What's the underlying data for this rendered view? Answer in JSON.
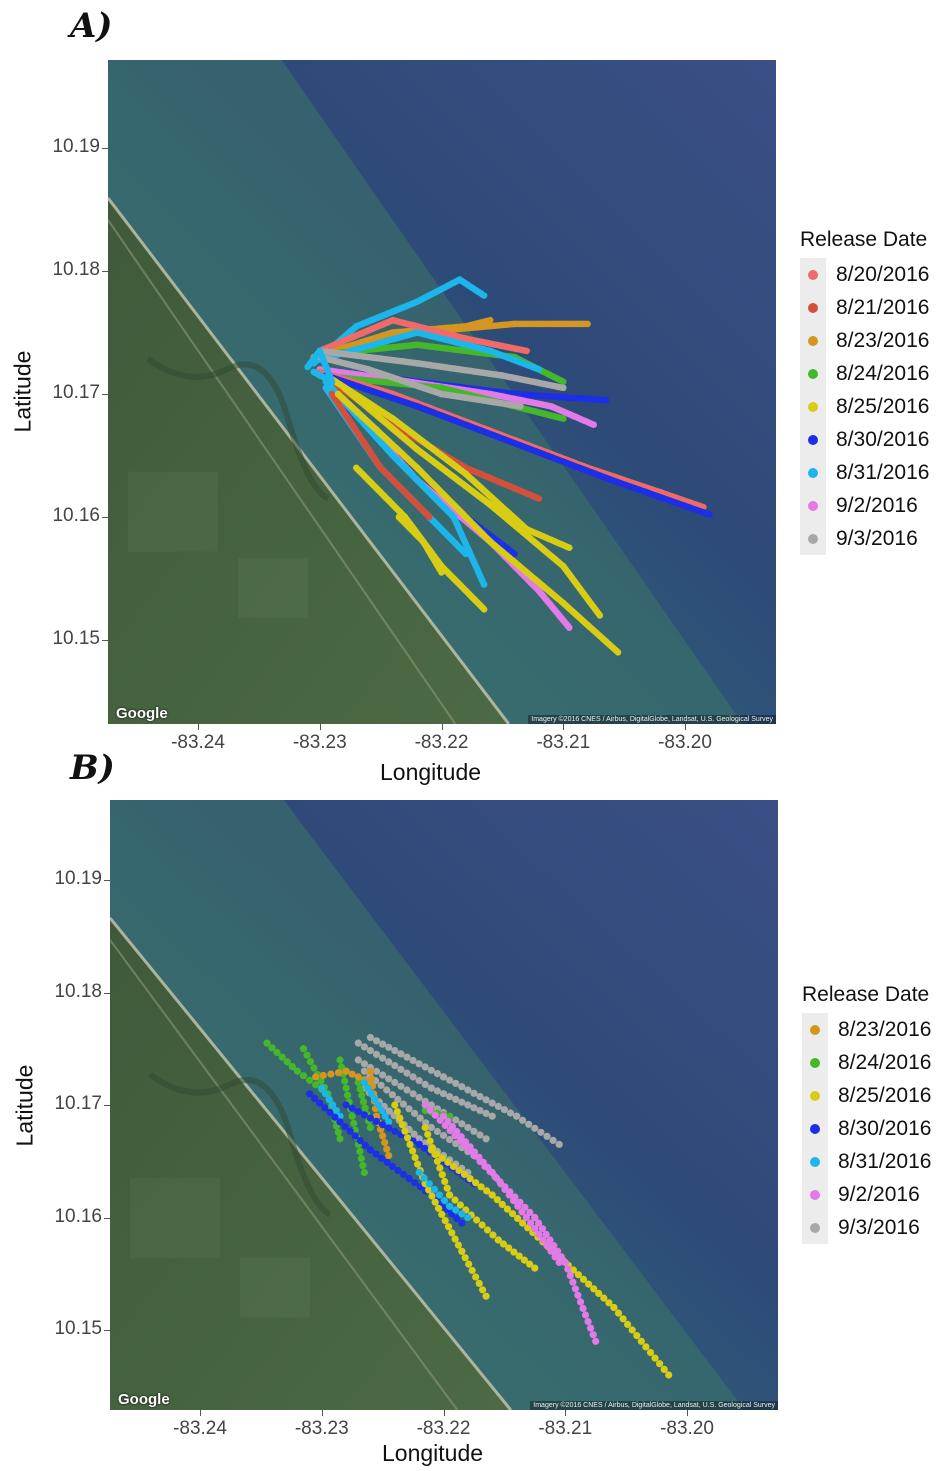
{
  "colors": {
    "8/20/2016": "#f06a6a",
    "8/21/2016": "#d2503c",
    "8/23/2016": "#d4961e",
    "8/24/2016": "#44b82a",
    "8/25/2016": "#d8cc14",
    "8/30/2016": "#1c2ee6",
    "8/31/2016": "#1cb6ea",
    "9/2/2016": "#e27ae8",
    "9/3/2016": "#a8a8a8"
  },
  "panels": [
    {
      "letter": "A)",
      "x_ticks": [
        "-83.24",
        "-83.23",
        "-83.22",
        "-83.21",
        "-83.20"
      ],
      "y_ticks": [
        "10.19",
        "10.18",
        "10.17",
        "10.16",
        "10.15"
      ],
      "xlabel": "Longitude",
      "ylabel": "Latitude",
      "google_label": "Google",
      "imagery_credit": "Imagery ©2016 CNES / Airbus, DigitalGlobe, Landsat, U.S. Geological Survey",
      "legend_title": "Release Date",
      "legend": [
        "8/20/2016",
        "8/21/2016",
        "8/23/2016",
        "8/24/2016",
        "8/25/2016",
        "8/30/2016",
        "8/31/2016",
        "9/2/2016",
        "9/3/2016"
      ],
      "tracks": [
        {
          "date": "8/31/2016",
          "pts": [
            [
              -83.2305,
              10.1725
            ],
            [
              -83.227,
              10.1755
            ],
            [
              -83.222,
              10.1775
            ],
            [
              -83.2185,
              10.1793
            ],
            [
              -83.2165,
              10.178
            ]
          ]
        },
        {
          "date": "8/23/2016",
          "pts": [
            [
              -83.2305,
              10.173
            ],
            [
              -83.224,
              10.175
            ],
            [
              -83.218,
              10.1755
            ],
            [
              -83.216,
              10.176
            ]
          ]
        },
        {
          "date": "8/23/2016",
          "pts": [
            [
              -83.224,
              10.1748
            ],
            [
              -83.214,
              10.1757
            ],
            [
              -83.208,
              10.1757
            ]
          ]
        },
        {
          "date": "8/20/2016",
          "pts": [
            [
              -83.23,
              10.1735
            ],
            [
              -83.224,
              10.176
            ],
            [
              -83.218,
              10.1745
            ],
            [
              -83.213,
              10.1735
            ]
          ]
        },
        {
          "date": "8/24/2016",
          "pts": [
            [
              -83.23,
              10.1732
            ],
            [
              -83.222,
              10.174
            ],
            [
              -83.214,
              10.173
            ],
            [
              -83.21,
              10.171
            ]
          ]
        },
        {
          "date": "8/31/2016",
          "pts": [
            [
              -83.23,
              10.1728
            ],
            [
              -83.222,
              10.175
            ],
            [
              -83.216,
              10.1735
            ],
            [
              -83.212,
              10.172
            ]
          ]
        },
        {
          "date": "9/3/2016",
          "pts": [
            [
              -83.23,
              10.1735
            ],
            [
              -83.222,
              10.1725
            ],
            [
              -83.215,
              10.1715
            ],
            [
              -83.21,
              10.1705
            ]
          ]
        },
        {
          "date": "8/30/2016",
          "pts": [
            [
              -83.23,
              10.172
            ],
            [
              -83.222,
              10.171
            ],
            [
              -83.214,
              10.17
            ],
            [
              -83.2065,
              10.1695
            ]
          ]
        },
        {
          "date": "9/2/2016",
          "pts": [
            [
              -83.23,
              10.172
            ],
            [
              -83.224,
              10.1712
            ],
            [
              -83.216,
              10.17
            ],
            [
              -83.211,
              10.169
            ],
            [
              -83.2075,
              10.1675
            ]
          ]
        },
        {
          "date": "8/24/2016",
          "pts": [
            [
              -83.23,
              10.1715
            ],
            [
              -83.22,
              10.1705
            ],
            [
              -83.214,
              10.169
            ],
            [
              -83.21,
              10.168
            ]
          ]
        },
        {
          "date": "8/20/2016",
          "pts": [
            [
              -83.23,
              10.1718
            ],
            [
              -83.224,
              10.17
            ],
            [
              -83.216,
              10.167
            ],
            [
              -83.208,
              10.164
            ],
            [
              -83.202,
              10.162
            ],
            [
              -83.1985,
              10.1608
            ]
          ]
        },
        {
          "date": "8/30/2016",
          "pts": [
            [
              -83.2295,
              10.1715
            ],
            [
              -83.222,
              10.169
            ],
            [
              -83.214,
              10.166
            ],
            [
              -83.206,
              10.163
            ],
            [
              -83.198,
              10.1602
            ]
          ]
        },
        {
          "date": "8/21/2016",
          "pts": [
            [
              -83.229,
              10.171
            ],
            [
              -83.224,
              10.1675
            ],
            [
              -83.218,
              10.164
            ],
            [
              -83.212,
              10.1615
            ]
          ]
        },
        {
          "date": "8/25/2016",
          "pts": [
            [
              -83.229,
              10.1712
            ],
            [
              -83.224,
              10.168
            ],
            [
              -83.218,
              10.1635
            ],
            [
              -83.213,
              10.159
            ],
            [
              -83.2095,
              10.1575
            ]
          ]
        },
        {
          "date": "8/25/2016",
          "pts": [
            [
              -83.228,
              10.1705
            ],
            [
              -83.222,
              10.1655
            ],
            [
              -83.216,
              10.161
            ],
            [
              -83.21,
              10.156
            ],
            [
              -83.207,
              10.152
            ]
          ]
        },
        {
          "date": "8/30/2016",
          "pts": [
            [
              -83.229,
              10.17
            ],
            [
              -83.222,
              10.164
            ],
            [
              -83.218,
              10.16
            ],
            [
              -83.214,
              10.157
            ]
          ]
        },
        {
          "date": "9/2/2016",
          "pts": [
            [
              -83.2285,
              10.17
            ],
            [
              -83.222,
              10.163
            ],
            [
              -83.216,
              10.158
            ],
            [
              -83.212,
              10.154
            ],
            [
              -83.2095,
              10.151
            ]
          ]
        },
        {
          "date": "8/31/2016",
          "pts": [
            [
              -83.2295,
              10.171
            ],
            [
              -83.224,
              10.165
            ],
            [
              -83.219,
              10.16
            ],
            [
              -83.2165,
              10.1545
            ]
          ]
        },
        {
          "date": "8/31/2016",
          "pts": [
            [
              -83.2295,
              10.1705
            ],
            [
              -83.225,
              10.164
            ],
            [
              -83.221,
              10.16
            ],
            [
              -83.218,
              10.157
            ]
          ]
        },
        {
          "date": "8/21/2016",
          "pts": [
            [
              -83.229,
              10.17
            ],
            [
              -83.225,
              10.164
            ],
            [
              -83.221,
              10.16
            ]
          ]
        },
        {
          "date": "8/25/2016",
          "pts": [
            [
              -83.227,
              10.164
            ],
            [
              -83.223,
              10.16
            ],
            [
              -83.22,
              10.156
            ],
            [
              -83.2165,
              10.1525
            ]
          ]
        },
        {
          "date": "8/25/2016",
          "pts": [
            [
              -83.2235,
              10.16
            ],
            [
              -83.2215,
              10.158
            ],
            [
              -83.22,
              10.1555
            ]
          ]
        },
        {
          "date": "8/25/2016",
          "pts": [
            [
              -83.2285,
              10.17
            ],
            [
              -83.222,
              10.164
            ],
            [
              -83.216,
              10.158
            ],
            [
              -83.21,
              10.153
            ],
            [
              -83.2055,
              10.149
            ]
          ]
        },
        {
          "date": "9/3/2016",
          "pts": [
            [
              -83.23,
              10.173
            ],
            [
              -83.226,
              10.172
            ],
            [
              -83.22,
              10.17
            ],
            [
              -83.2135,
              10.169
            ]
          ]
        },
        {
          "date": "8/31/2016",
          "pts": [
            [
              -83.231,
              10.1722
            ],
            [
              -83.23,
              10.1735
            ],
            [
              -83.229,
              10.171
            ],
            [
              -83.2305,
              10.1718
            ]
          ]
        }
      ]
    },
    {
      "letter": "B)",
      "x_ticks": [
        "-83.24",
        "-83.23",
        "-83.22",
        "-83.21",
        "-83.20"
      ],
      "y_ticks": [
        "10.19",
        "10.18",
        "10.17",
        "10.16",
        "10.15"
      ],
      "xlabel": "Longitude",
      "ylabel": "Latitude",
      "google_label": "Google",
      "imagery_credit": "Imagery ©2016 CNES / Airbus, DigitalGlobe, Landsat, U.S. Geological Survey",
      "legend_title": "Release Date",
      "legend": [
        "8/23/2016",
        "8/24/2016",
        "8/25/2016",
        "8/30/2016",
        "8/31/2016",
        "9/2/2016",
        "9/3/2016"
      ],
      "tracks": [
        {
          "date": "9/3/2016",
          "pts": [
            [
              -83.226,
              10.176
            ],
            [
              -83.22,
              10.1725
            ],
            [
              -83.214,
              10.169
            ],
            [
              -83.2105,
              10.1665
            ]
          ]
        },
        {
          "date": "9/3/2016",
          "pts": [
            [
              -83.227,
              10.1755
            ],
            [
              -83.221,
              10.1715
            ],
            [
              -83.216,
              10.169
            ]
          ]
        },
        {
          "date": "9/3/2016",
          "pts": [
            [
              -83.227,
              10.174
            ],
            [
              -83.221,
              10.17
            ],
            [
              -83.2165,
              10.167
            ]
          ]
        },
        {
          "date": "9/3/2016",
          "pts": [
            [
              -83.2265,
              10.173
            ],
            [
              -83.221,
              10.168
            ],
            [
              -83.2175,
              10.1655
            ]
          ]
        },
        {
          "date": "9/3/2016",
          "pts": [
            [
              -83.2265,
              10.1715
            ],
            [
              -83.222,
              10.167
            ],
            [
              -83.218,
              10.164
            ]
          ]
        },
        {
          "date": "8/24/2016",
          "pts": [
            [
              -83.2345,
              10.1755
            ],
            [
              -83.232,
              10.173
            ],
            [
              -83.2295,
              10.171
            ]
          ]
        },
        {
          "date": "8/24/2016",
          "pts": [
            [
              -83.2315,
              10.175
            ],
            [
              -83.2295,
              10.171
            ],
            [
              -83.2285,
              10.167
            ]
          ]
        },
        {
          "date": "8/24/2016",
          "pts": [
            [
              -83.2285,
              10.174
            ],
            [
              -83.2275,
              10.169
            ],
            [
              -83.2265,
              10.164
            ]
          ]
        },
        {
          "date": "8/24/2016",
          "pts": [
            [
              -83.227,
              10.172
            ],
            [
              -83.226,
              10.168
            ]
          ]
        },
        {
          "date": "8/24/2016",
          "pts": [
            [
              -83.2215,
              10.1695
            ],
            [
              -83.2195,
              10.169
            ]
          ]
        },
        {
          "date": "8/23/2016",
          "pts": [
            [
              -83.2305,
              10.1725
            ],
            [
              -83.228,
              10.173
            ],
            [
              -83.226,
              10.172
            ]
          ]
        },
        {
          "date": "8/23/2016",
          "pts": [
            [
              -83.226,
              10.173
            ],
            [
              -83.2255,
              10.169
            ],
            [
              -83.2245,
              10.1655
            ]
          ]
        },
        {
          "date": "8/31/2016",
          "pts": [
            [
              -83.23,
              10.1715
            ],
            [
              -83.2285,
              10.169
            ]
          ]
        },
        {
          "date": "8/31/2016",
          "pts": [
            [
              -83.2265,
              10.172
            ],
            [
              -83.2245,
              10.1685
            ]
          ]
        },
        {
          "date": "8/30/2016",
          "pts": [
            [
              -83.231,
              10.171
            ],
            [
              -83.226,
              10.166
            ],
            [
              -83.221,
              10.162
            ],
            [
              -83.2185,
              10.1595
            ]
          ]
        },
        {
          "date": "8/30/2016",
          "pts": [
            [
              -83.228,
              10.17
            ],
            [
              -83.222,
              10.1665
            ],
            [
              -83.2175,
              10.163
            ]
          ]
        },
        {
          "date": "8/25/2016",
          "pts": [
            [
              -83.224,
              10.17
            ],
            [
              -83.2215,
              10.163
            ],
            [
              -83.2185,
              10.157
            ],
            [
              -83.2165,
              10.153
            ]
          ]
        },
        {
          "date": "8/25/2016",
          "pts": [
            [
              -83.221,
              10.166
            ],
            [
              -83.216,
              10.162
            ],
            [
              -83.211,
              10.157
            ],
            [
              -83.206,
              10.152
            ],
            [
              -83.2015,
              10.146
            ]
          ]
        },
        {
          "date": "8/25/2016",
          "pts": [
            [
              -83.2215,
              10.168
            ],
            [
              -83.2195,
              10.162
            ],
            [
              -83.2155,
              10.158
            ],
            [
              -83.2125,
              10.1555
            ]
          ]
        },
        {
          "date": "9/2/2016",
          "pts": [
            [
              -83.2215,
              10.17
            ],
            [
              -83.217,
              10.165
            ],
            [
              -83.2125,
              10.16
            ],
            [
              -83.21,
              10.156
            ],
            [
              -83.2075,
              10.149
            ]
          ]
        },
        {
          "date": "9/2/2016",
          "pts": [
            [
              -83.22,
              10.169
            ],
            [
              -83.216,
              10.164
            ],
            [
              -83.2125,
              10.159
            ],
            [
              -83.2105,
              10.156
            ]
          ]
        },
        {
          "date": "8/31/2016",
          "pts": [
            [
              -83.222,
              10.164
            ],
            [
              -83.2195,
              10.161
            ],
            [
              -83.218,
              10.16
            ]
          ]
        }
      ]
    }
  ]
}
